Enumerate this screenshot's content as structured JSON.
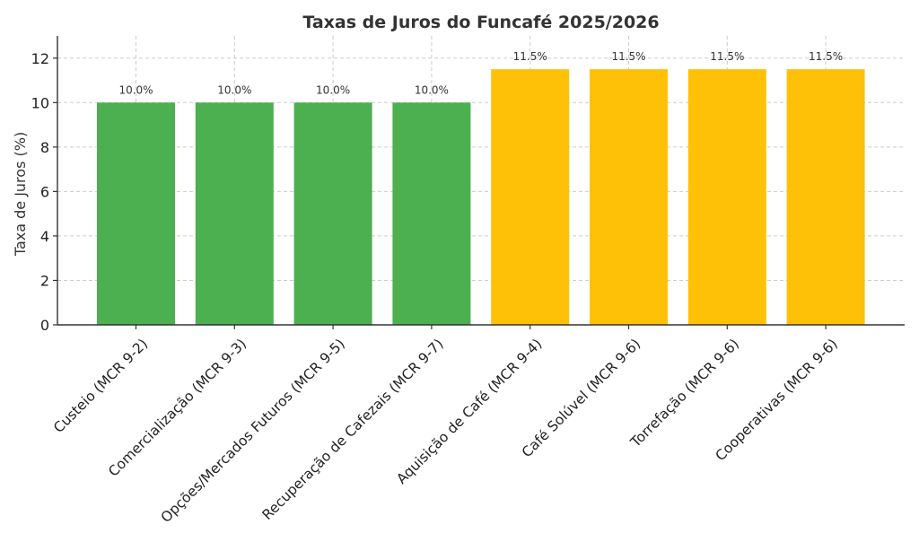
{
  "chart_data": {
    "type": "bar",
    "title": "Taxas de Juros do Funcafé 2025/2026",
    "xlabel": "",
    "ylabel": "Taxa de Juros (%)",
    "categories": [
      "Custeio (MCR 9-2)",
      "Comercialização (MCR 9-3)",
      "Opções/Mercados Futuros (MCR 9-5)",
      "Recuperação de Cafezais (MCR 9-7)",
      "Aquisição de Café (MCR 9-4)",
      "Café Solúvel (MCR 9-6)",
      "Torrefação (MCR 9-6)",
      "Cooperativas (MCR 9-6)"
    ],
    "values": [
      10.0,
      10.0,
      10.0,
      10.0,
      11.5,
      11.5,
      11.5,
      11.5
    ],
    "data_labels": [
      "10.0%",
      "10.0%",
      "10.0%",
      "10.0%",
      "11.5%",
      "11.5%",
      "11.5%",
      "11.5%"
    ],
    "bar_colors": [
      "#4caf50",
      "#4caf50",
      "#4caf50",
      "#4caf50",
      "#ffc107",
      "#ffc107",
      "#ffc107",
      "#ffc107"
    ],
    "ylim": [
      0,
      13
    ],
    "yticks": [
      0,
      2,
      4,
      6,
      8,
      10,
      12
    ],
    "grid": true,
    "legend": "none"
  }
}
